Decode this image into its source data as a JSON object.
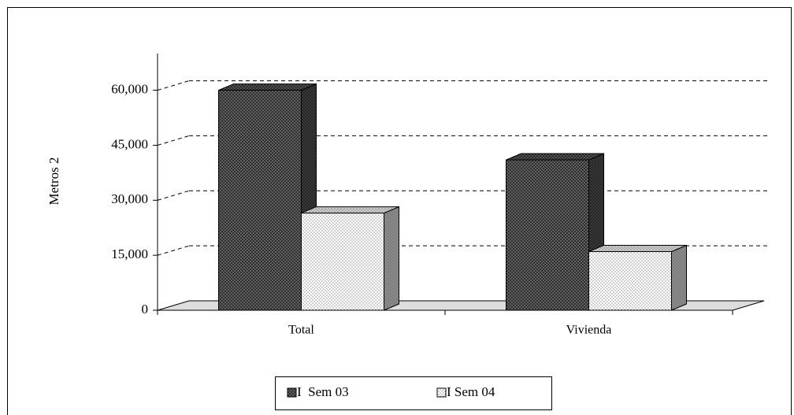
{
  "chart_data": {
    "type": "bar3d",
    "y_label": "Metros 2",
    "categories": [
      "Total",
      "Vivienda"
    ],
    "series": [
      {
        "name": "I  Sem 03",
        "color": "#6e6e6e",
        "values": [
          60000,
          41000
        ]
      },
      {
        "name": "I Sem 04",
        "color": "#ffffff",
        "values": [
          26500,
          16000
        ]
      }
    ],
    "ylim": [
      0,
      70000
    ],
    "yticks": [
      0,
      {
        "value": 15000,
        "label": "15,000"
      },
      {
        "value": 30000,
        "label": "30,000"
      },
      {
        "value": 45000,
        "label": "45,000"
      },
      {
        "value": 60000,
        "label": "60,000"
      }
    ],
    "grid": true,
    "legend": "bottom"
  }
}
